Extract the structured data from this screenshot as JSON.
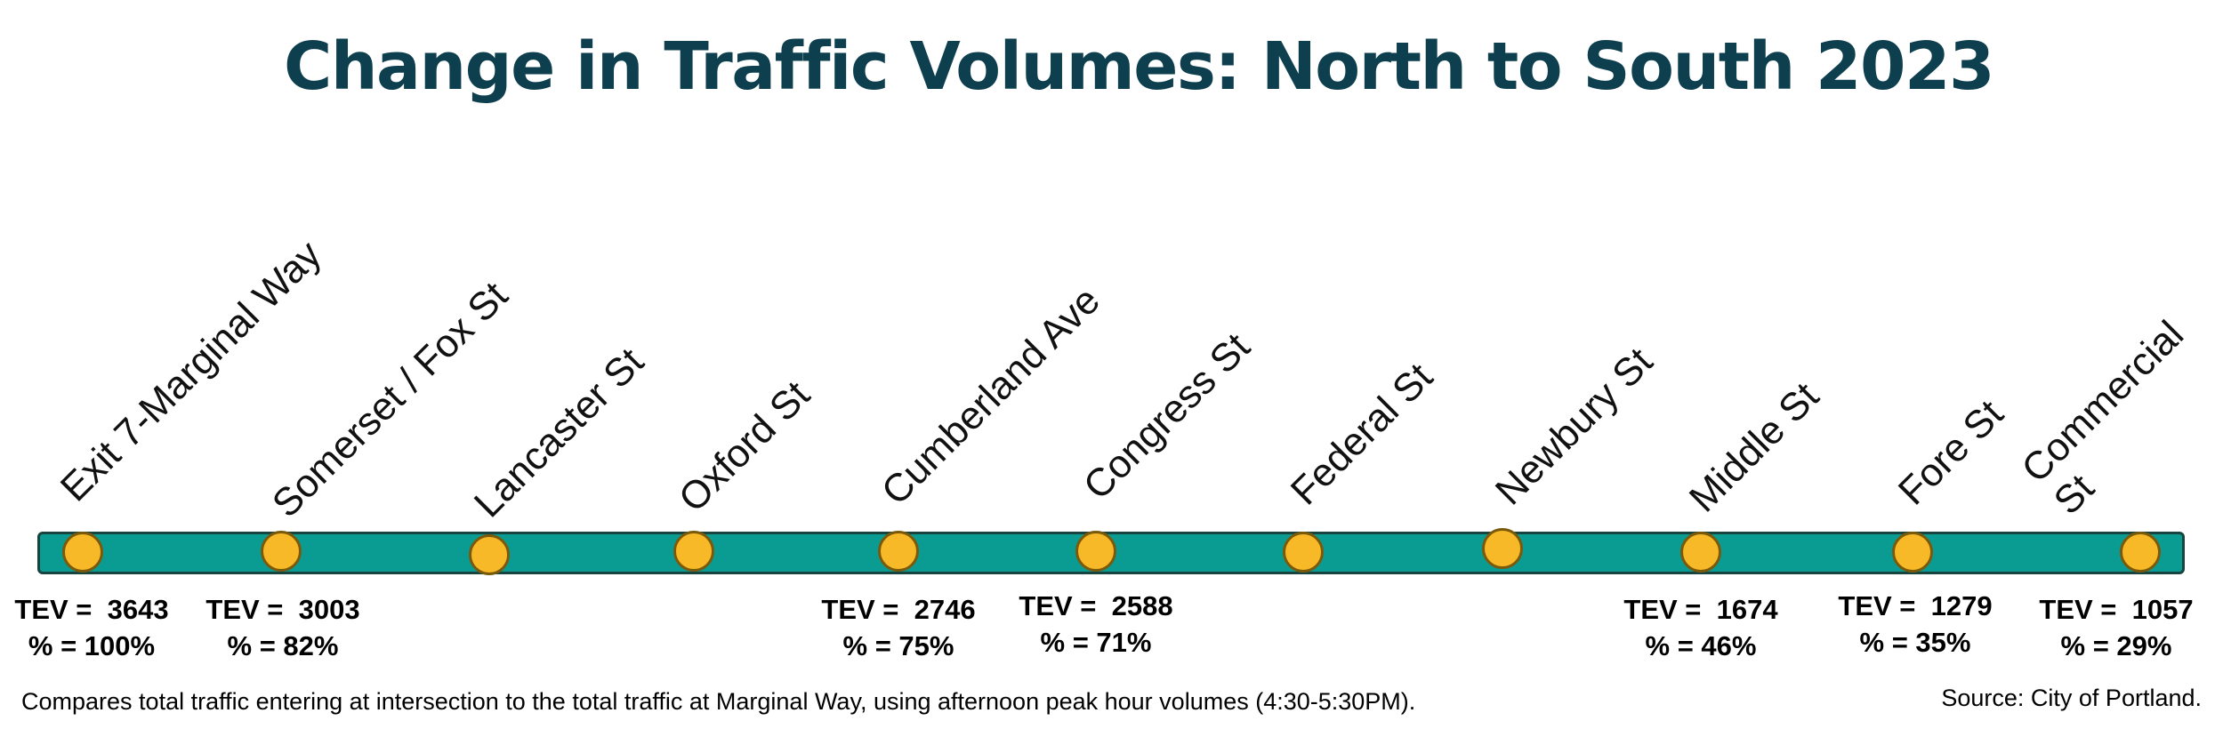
{
  "title": "Change in Traffic Volumes: North to South 2023",
  "colors": {
    "title": "#0d3f4e",
    "route": "#0a9c92",
    "stop": "#f7b928",
    "stop_border": "#7a5a0a"
  },
  "stops": [
    {
      "name": "Exit 7-Marginal Way",
      "tev": "TEV =  3643",
      "pct": "% = 100%"
    },
    {
      "name": "Somerset / Fox St",
      "tev": "TEV =  3003",
      "pct": "% = 82%"
    },
    {
      "name": "Lancaster St",
      "tev": "",
      "pct": ""
    },
    {
      "name": "Oxford St",
      "tev": "",
      "pct": ""
    },
    {
      "name": "Cumberland Ave",
      "tev": "TEV =  2746",
      "pct": "% = 75%"
    },
    {
      "name": "Congress St",
      "tev": "TEV =  2588",
      "pct": "% = 71%"
    },
    {
      "name": "Federal St",
      "tev": "",
      "pct": ""
    },
    {
      "name": "Newbury St",
      "tev": "",
      "pct": ""
    },
    {
      "name": "Middle St",
      "tev": "TEV =  1674",
      "pct": "% = 46%"
    },
    {
      "name": "Fore St",
      "tev": "TEV =  1279",
      "pct": "% = 35%"
    },
    {
      "name": "Commercial St",
      "tev": "TEV =  1057",
      "pct": "% = 29%"
    }
  ],
  "footnote": "Compares total traffic entering at intersection to the total traffic at Marginal Way, using afternoon peak hour volumes (4:30-5:30PM).",
  "source": "Source: City of Portland."
}
